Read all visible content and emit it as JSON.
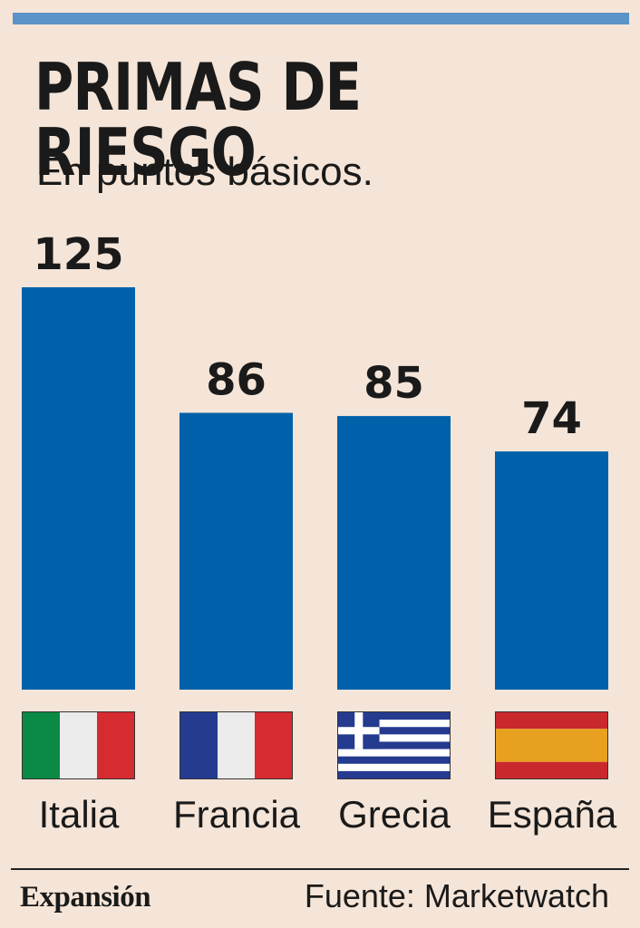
{
  "header": {
    "title": "PRIMAS DE RIESGO",
    "subtitle": "En puntos básicos."
  },
  "chart_data": {
    "type": "bar",
    "title": "PRIMAS DE RIESGO",
    "subtitle": "En puntos básicos.",
    "categories": [
      "Italia",
      "Francia",
      "Grecia",
      "España"
    ],
    "values": [
      125,
      86,
      85,
      74
    ],
    "value_labels": [
      "125",
      "86",
      "85",
      "74"
    ],
    "xlabel": "",
    "ylabel": "En puntos básicos.",
    "ylim": [
      0,
      125
    ],
    "grid": false,
    "bar_color": "#0061aa"
  },
  "flags": [
    {
      "country": "Italia",
      "icon": "italy-flag-icon"
    },
    {
      "country": "Francia",
      "icon": "france-flag-icon"
    },
    {
      "country": "Grecia",
      "icon": "greece-flag-icon"
    },
    {
      "country": "España",
      "icon": "spain-flag-icon"
    }
  ],
  "colors": {
    "background": "#f5e5d8",
    "accent_rule": "#5b93c6",
    "bar": "#0061aa"
  },
  "footer": {
    "brand": "Expansión",
    "source": "Fuente: Marketwatch"
  }
}
